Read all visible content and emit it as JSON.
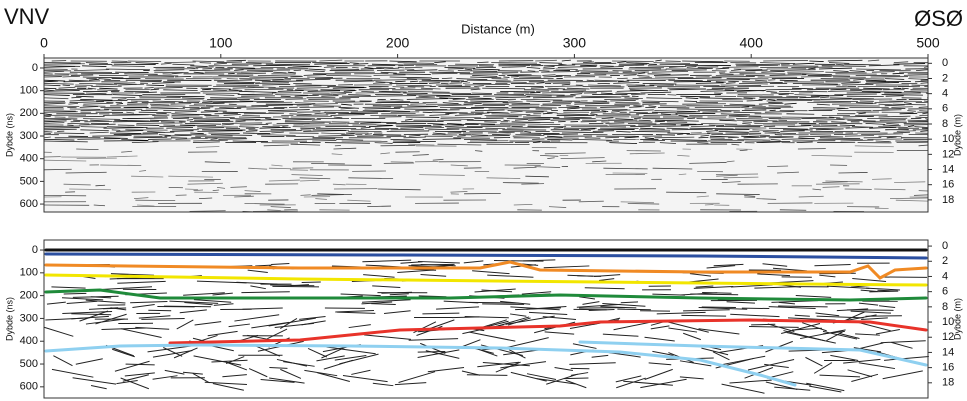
{
  "header": {
    "left_end": "VNV",
    "right_end": "ØSØ"
  },
  "x_axis": {
    "label": "Distance (m)",
    "xlim": [
      0,
      500
    ],
    "xticks": [
      0,
      100,
      200,
      300,
      400,
      500
    ]
  },
  "panels": [
    {
      "y_label": "Dybde (ns)",
      "ylim": [
        -44,
        635
      ],
      "yticks": [
        0,
        100,
        200,
        300,
        400,
        500,
        600
      ],
      "y2_label": "Dybde (m)",
      "y2lim": [
        -0.7,
        19.6
      ],
      "y2ticks": [
        0,
        2,
        4,
        6,
        8,
        10,
        12,
        14,
        16,
        18
      ]
    },
    {
      "y_label": "Dybde (ns)",
      "ylim": [
        -44,
        649
      ],
      "yticks": [
        0,
        100,
        200,
        300,
        400,
        500,
        600
      ],
      "y2_label": "Dybde (m)",
      "y2lim": [
        -0.8,
        20
      ],
      "y2ticks": [
        0,
        2,
        4,
        6,
        8,
        10,
        12,
        14,
        16,
        18
      ]
    }
  ]
}
